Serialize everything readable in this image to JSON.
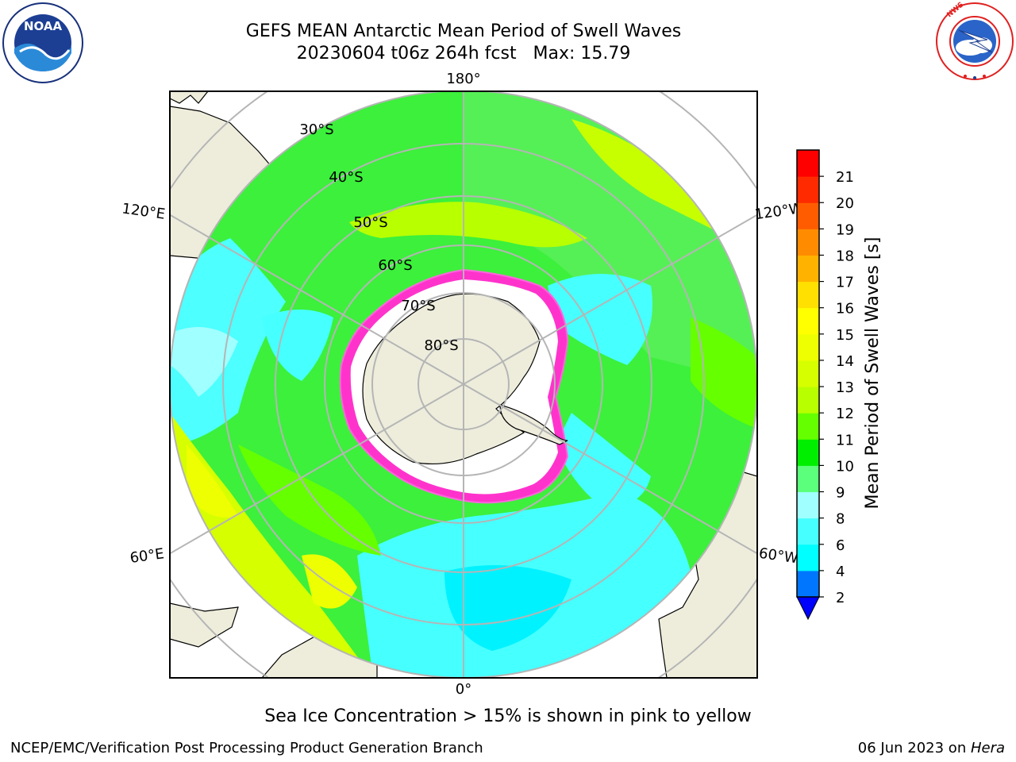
{
  "header": {
    "title_line1": "GEFS MEAN Antarctic Mean Period of Swell Waves",
    "title_line2": "20230604 t06z 264h fcst   Max: 15.79"
  },
  "logos": {
    "left": "noaa-logo",
    "right": "nws-logo"
  },
  "map": {
    "projection": "south-polar-stereographic",
    "longitude_labels": [
      "180°",
      "120°E",
      "120°W",
      "60°E",
      "60°W",
      "0°"
    ],
    "latitude_labels": [
      "30°S",
      "40°S",
      "50°S",
      "60°S",
      "70°S",
      "80°S"
    ],
    "colors": {
      "land": "#eeeddc",
      "sea_ice_edge": "#ff33cc",
      "graticule": "#b5b5b5"
    }
  },
  "colorbar": {
    "label": "Mean Period of Swell Waves [s]",
    "ticks": [
      "2",
      "4",
      "6",
      "8",
      "9",
      "10",
      "11",
      "12",
      "13",
      "14",
      "15",
      "16",
      "17",
      "18",
      "19",
      "20",
      "21"
    ],
    "colors": [
      "#0076ff",
      "#00ffff",
      "#46ffff",
      "#a0ffff",
      "#5bff7c",
      "#00ee00",
      "#65ff00",
      "#b8ff00",
      "#d6ff00",
      "#edff00",
      "#ffff00",
      "#ffe000",
      "#ffb300",
      "#ff8c00",
      "#ff5c00",
      "#ff2a00",
      "#ff0000"
    ],
    "under_color": "#0000ff"
  },
  "sea_ice_note": "Sea Ice Concentration > 15% is shown in pink to yellow",
  "footer": {
    "left": "NCEP/EMC/Verification Post Processing Product Generation Branch",
    "right_date": "06 Jun 2023 on ",
    "right_host": "Hera"
  }
}
